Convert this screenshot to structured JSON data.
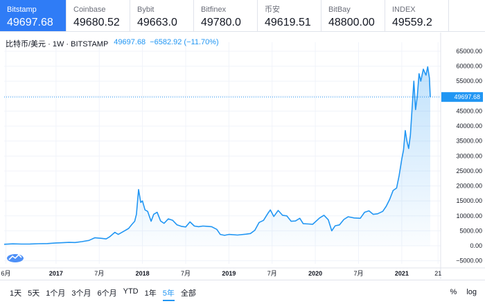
{
  "exchanges": [
    {
      "name": "Bitstamp",
      "price": "49697.68",
      "active": true
    },
    {
      "name": "Coinbase",
      "price": "49680.52",
      "active": false
    },
    {
      "name": "Bybit",
      "price": "49663.0",
      "active": false
    },
    {
      "name": "Bitfinex",
      "price": "49780.0",
      "active": false
    },
    {
      "name": "币安",
      "price": "49619.51",
      "active": false
    },
    {
      "name": "BitBay",
      "price": "48800.00",
      "active": false
    },
    {
      "name": "INDEX",
      "price": "49559.2",
      "active": false
    }
  ],
  "legend": {
    "symbol": "比特币/美元 · 1W · BITSTAMP",
    "last": "49697.68",
    "change": "−6582.92 (−11.70%)"
  },
  "chart_data": {
    "type": "area",
    "line_color": "#2196f3",
    "fill_color": "#2196f3",
    "y_ticks": [
      "65000.00",
      "60000.00",
      "55000.00",
      "50000.00",
      "45000.00",
      "40000.00",
      "35000.00",
      "30000.00",
      "25000.00",
      "20000.00",
      "15000.00",
      "10000.00",
      "5000.00",
      "0.00",
      "−5000.00"
    ],
    "y_tick_values": [
      65000,
      60000,
      55000,
      50000,
      45000,
      40000,
      35000,
      30000,
      25000,
      20000,
      15000,
      10000,
      5000,
      0,
      -5000
    ],
    "ylim": [
      -6000,
      68000
    ],
    "x_ticks": [
      {
        "label": "6月",
        "t": 2016.42,
        "year": false
      },
      {
        "label": "2017",
        "t": 2017.0,
        "year": true
      },
      {
        "label": "7月",
        "t": 2017.5,
        "year": false
      },
      {
        "label": "2018",
        "t": 2018.0,
        "year": true
      },
      {
        "label": "7月",
        "t": 2018.5,
        "year": false
      },
      {
        "label": "2019",
        "t": 2019.0,
        "year": true
      },
      {
        "label": "7月",
        "t": 2019.5,
        "year": false
      },
      {
        "label": "2020",
        "t": 2020.0,
        "year": true
      },
      {
        "label": "7月",
        "t": 2020.5,
        "year": false
      },
      {
        "label": "2021",
        "t": 2021.0,
        "year": true
      },
      {
        "label": "21",
        "t": 2021.42,
        "year": false
      }
    ],
    "xlim": [
      2016.4,
      2021.45
    ],
    "last_value": 49697.68,
    "last_label": "49697.68",
    "points": [
      [
        2016.4,
        530
      ],
      [
        2016.5,
        650
      ],
      [
        2016.6,
        600
      ],
      [
        2016.7,
        620
      ],
      [
        2016.8,
        700
      ],
      [
        2016.9,
        750
      ],
      [
        2017.0,
        950
      ],
      [
        2017.05,
        1000
      ],
      [
        2017.15,
        1150
      ],
      [
        2017.22,
        1100
      ],
      [
        2017.3,
        1400
      ],
      [
        2017.38,
        1800
      ],
      [
        2017.45,
        2700
      ],
      [
        2017.52,
        2500
      ],
      [
        2017.58,
        2300
      ],
      [
        2017.62,
        3000
      ],
      [
        2017.68,
        4500
      ],
      [
        2017.72,
        3800
      ],
      [
        2017.78,
        4800
      ],
      [
        2017.84,
        5800
      ],
      [
        2017.88,
        7200
      ],
      [
        2017.91,
        8200
      ],
      [
        2017.93,
        10500
      ],
      [
        2017.955,
        18800
      ],
      [
        2017.98,
        14500
      ],
      [
        2018.0,
        15000
      ],
      [
        2018.03,
        12000
      ],
      [
        2018.06,
        11500
      ],
      [
        2018.1,
        8200
      ],
      [
        2018.13,
        10500
      ],
      [
        2018.17,
        11200
      ],
      [
        2018.21,
        8300
      ],
      [
        2018.25,
        7500
      ],
      [
        2018.3,
        9000
      ],
      [
        2018.35,
        8500
      ],
      [
        2018.4,
        7000
      ],
      [
        2018.45,
        6500
      ],
      [
        2018.5,
        6300
      ],
      [
        2018.55,
        8000
      ],
      [
        2018.6,
        6600
      ],
      [
        2018.65,
        6400
      ],
      [
        2018.7,
        6600
      ],
      [
        2018.75,
        6500
      ],
      [
        2018.8,
        6400
      ],
      [
        2018.86,
        5500
      ],
      [
        2018.9,
        3800
      ],
      [
        2018.95,
        3500
      ],
      [
        2019.0,
        3800
      ],
      [
        2019.1,
        3600
      ],
      [
        2019.2,
        3900
      ],
      [
        2019.25,
        4100
      ],
      [
        2019.3,
        5200
      ],
      [
        2019.35,
        7800
      ],
      [
        2019.4,
        8500
      ],
      [
        2019.45,
        10800
      ],
      [
        2019.48,
        12000
      ],
      [
        2019.52,
        9800
      ],
      [
        2019.57,
        11800
      ],
      [
        2019.62,
        10200
      ],
      [
        2019.67,
        10000
      ],
      [
        2019.72,
        8200
      ],
      [
        2019.77,
        8300
      ],
      [
        2019.82,
        9200
      ],
      [
        2019.86,
        7400
      ],
      [
        2019.92,
        7300
      ],
      [
        2019.97,
        7200
      ],
      [
        2020.05,
        9300
      ],
      [
        2020.1,
        10200
      ],
      [
        2020.15,
        8700
      ],
      [
        2020.19,
        5000
      ],
      [
        2020.23,
        6700
      ],
      [
        2020.28,
        7000
      ],
      [
        2020.33,
        8800
      ],
      [
        2020.38,
        9700
      ],
      [
        2020.45,
        9300
      ],
      [
        2020.52,
        9200
      ],
      [
        2020.57,
        11200
      ],
      [
        2020.62,
        11700
      ],
      [
        2020.67,
        10500
      ],
      [
        2020.72,
        10700
      ],
      [
        2020.78,
        11500
      ],
      [
        2020.82,
        13200
      ],
      [
        2020.86,
        15500
      ],
      [
        2020.9,
        18500
      ],
      [
        2020.94,
        19300
      ],
      [
        2020.97,
        23500
      ],
      [
        2021.0,
        29000
      ],
      [
        2021.02,
        32000
      ],
      [
        2021.04,
        38500
      ],
      [
        2021.06,
        35000
      ],
      [
        2021.08,
        32500
      ],
      [
        2021.1,
        37000
      ],
      [
        2021.12,
        46000
      ],
      [
        2021.14,
        55000
      ],
      [
        2021.16,
        45500
      ],
      [
        2021.18,
        50000
      ],
      [
        2021.2,
        57500
      ],
      [
        2021.22,
        55000
      ],
      [
        2021.25,
        59000
      ],
      [
        2021.28,
        57000
      ],
      [
        2021.3,
        59800
      ],
      [
        2021.32,
        56000
      ],
      [
        2021.33,
        49697.68
      ]
    ]
  },
  "toolbar": {
    "ranges": [
      {
        "label": "1天",
        "active": false
      },
      {
        "label": "5天",
        "active": false
      },
      {
        "label": "1个月",
        "active": false
      },
      {
        "label": "3个月",
        "active": false
      },
      {
        "label": "6个月",
        "active": false
      },
      {
        "label": "YTD",
        "active": false
      },
      {
        "label": "1年",
        "active": false
      },
      {
        "label": "5年",
        "active": true
      },
      {
        "label": "全部",
        "active": false
      }
    ],
    "percent_label": "%",
    "log_label": "log"
  }
}
